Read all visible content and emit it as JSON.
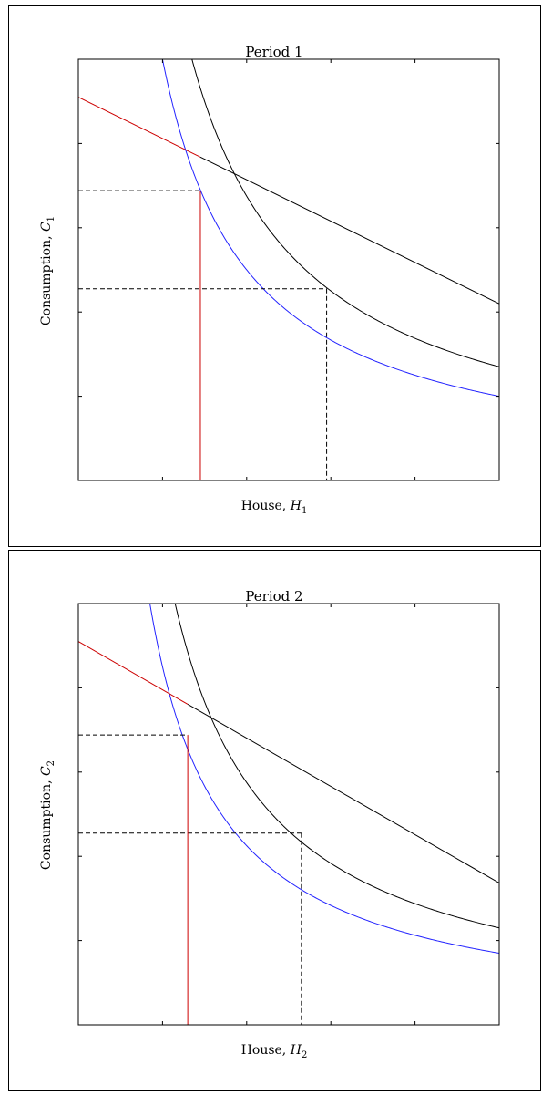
{
  "chart_data": [
    {
      "type": "line",
      "title": "Period 1",
      "xlabel": {
        "text": "House, ",
        "var": "H",
        "sub": "1"
      },
      "ylabel": {
        "text": "Consumption, ",
        "var": "C",
        "sub": "1"
      },
      "xlim": [
        0,
        10
      ],
      "ylim": [
        0,
        10
      ],
      "xticks": [
        2,
        4,
        6,
        8
      ],
      "yticks": [
        2,
        4,
        6,
        8
      ],
      "grid": false,
      "colors": {
        "budget_line": "#000000",
        "budget_segment": "#cc0000",
        "indiff_high": "#000000",
        "indiff_low": "#2222ff",
        "guides": "#000000"
      },
      "budget": {
        "intercept": 9.1,
        "slope": -0.4905
      },
      "budget_split_x": 2.9,
      "indifference_high": {
        "k": 27.0
      },
      "indifference_low": {
        "k": 20.0
      },
      "points": [
        {
          "name": "optimum",
          "x": 5.9,
          "y": 4.55
        },
        {
          "name": "constrained",
          "x": 2.9,
          "y": 6.88
        }
      ]
    },
    {
      "type": "line",
      "title": "Period 2",
      "xlabel": {
        "text": "House, ",
        "var": "H",
        "sub": "2"
      },
      "ylabel": {
        "text": "Consumption, ",
        "var": "C",
        "sub": "2"
      },
      "xlim": [
        0,
        10
      ],
      "ylim": [
        0,
        10
      ],
      "xticks": [
        2,
        4,
        6,
        8
      ],
      "yticks": [
        2,
        4,
        6,
        8
      ],
      "grid": false,
      "colors": {
        "budget_line": "#000000",
        "budget_segment": "#cc0000",
        "indiff_high": "#000000",
        "indiff_low": "#2222ff",
        "guides": "#000000"
      },
      "budget": {
        "intercept": 9.1,
        "slope": -0.5733
      },
      "budget_split_x": 2.6,
      "indifference_high": {
        "k": 23.0
      },
      "indifference_low": {
        "k": 17.0
      },
      "points": [
        {
          "name": "optimum",
          "x": 5.3,
          "y": 4.55
        },
        {
          "name": "constrained",
          "x": 2.6,
          "y": 6.88
        }
      ]
    }
  ]
}
